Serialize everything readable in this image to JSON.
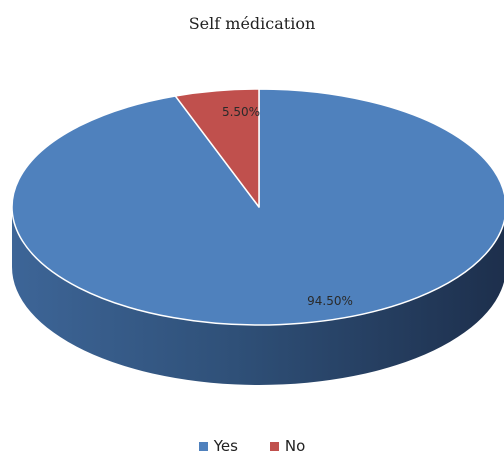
{
  "chart_data": {
    "type": "pie",
    "title": "Self médication",
    "categories": [
      "Yes",
      "No"
    ],
    "values": [
      94.5,
      5.5
    ],
    "data_labels": [
      "94.50%",
      "5.50%"
    ],
    "colors": [
      "#4f81bd",
      "#c0504d"
    ],
    "legend": "bottom"
  }
}
